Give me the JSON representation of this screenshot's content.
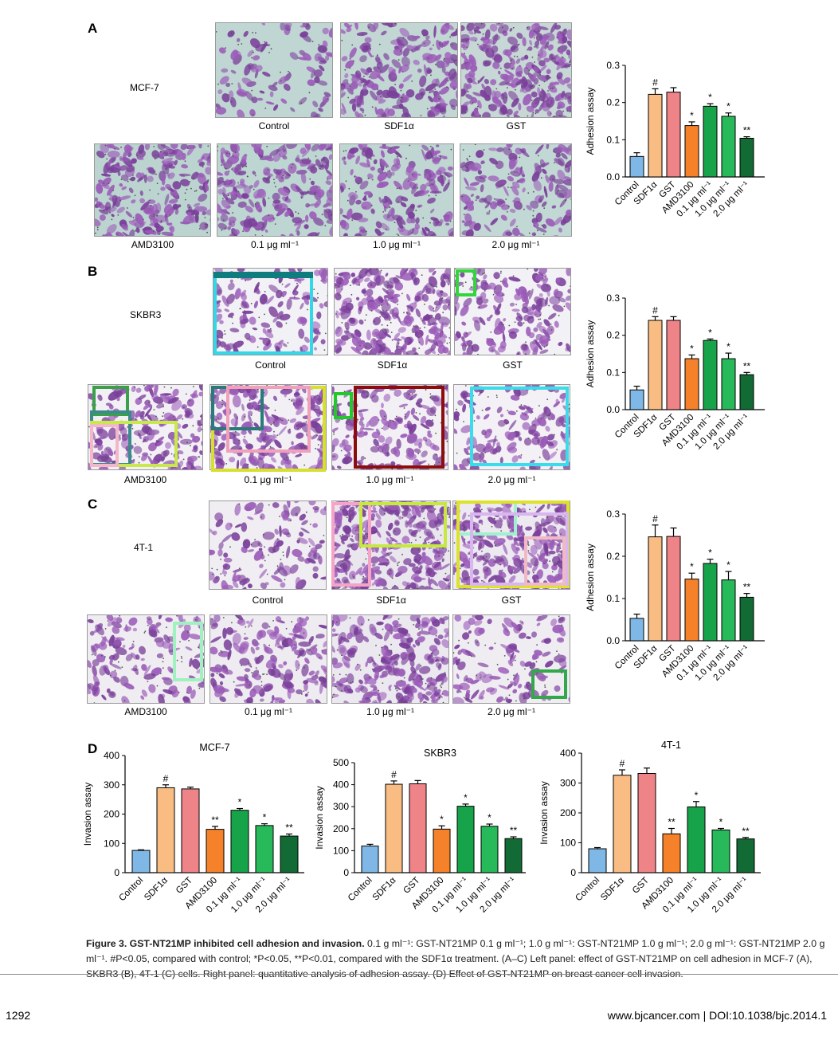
{
  "panels": {
    "A": {
      "letter": "A",
      "cell_line": "MCF-7"
    },
    "B": {
      "letter": "B",
      "cell_line": "SKBR3"
    },
    "C": {
      "letter": "C",
      "cell_line": "4T-1"
    },
    "D": {
      "letter": "D"
    }
  },
  "image_labels": {
    "control": "Control",
    "sdf": "SDF1α",
    "gst": "GST",
    "amd": "AMD3100",
    "d01": "0.1 μg ml⁻¹",
    "d10": "1.0 μg ml⁻¹",
    "d20": "2.0 μg ml⁻¹"
  },
  "colors": {
    "control": "#7fb8e6",
    "sdf": "#f9bd84",
    "gst": "#ef8488",
    "amd": "#f5822a",
    "d01": "#17a34a",
    "d10": "#27b95a",
    "d20": "#126b35",
    "stain_bg": "#c7d9d6",
    "stain_cell": "#7a3f9a"
  },
  "chart_data": [
    {
      "id": "A-adhesion",
      "type": "bar",
      "ylabel": "Adhesion assay",
      "ylim": [
        0,
        0.3
      ],
      "yticks": [
        "0.0",
        "0.1",
        "0.2",
        "0.3"
      ],
      "categories": [
        "Control",
        "SDF1α",
        "GST",
        "AMD3100",
        "0.1 μg ml⁻¹",
        "1.0 μg ml⁻¹",
        "2.0 μg ml⁻¹"
      ],
      "values": [
        0.055,
        0.222,
        0.228,
        0.138,
        0.19,
        0.163,
        0.104
      ],
      "errors": [
        0.01,
        0.015,
        0.012,
        0.01,
        0.007,
        0.009,
        0.004
      ],
      "annotations": [
        "",
        "#",
        "",
        "*",
        "*",
        "*",
        "**"
      ]
    },
    {
      "id": "B-adhesion",
      "type": "bar",
      "ylabel": "Adhesion assay",
      "ylim": [
        0,
        0.3
      ],
      "yticks": [
        "0.0",
        "0.1",
        "0.2",
        "0.3"
      ],
      "categories": [
        "Control",
        "SDF1α",
        "GST",
        "AMD3100",
        "0.1 μg ml⁻¹",
        "1.0 μg ml⁻¹",
        "2.0 μg ml⁻¹"
      ],
      "values": [
        0.053,
        0.24,
        0.24,
        0.137,
        0.186,
        0.137,
        0.094
      ],
      "errors": [
        0.01,
        0.01,
        0.01,
        0.01,
        0.004,
        0.015,
        0.006
      ],
      "annotations": [
        "",
        "#",
        "",
        "*",
        "*",
        "*",
        "**"
      ]
    },
    {
      "id": "C-adhesion",
      "type": "bar",
      "ylabel": "Adhesion assay",
      "ylim": [
        0,
        0.3
      ],
      "yticks": [
        "0.0",
        "0.1",
        "0.2",
        "0.3"
      ],
      "categories": [
        "Control",
        "SDF1α",
        "GST",
        "AMD3100",
        "0.1 μg ml⁻¹",
        "1.0 μg ml⁻¹",
        "2.0 μg ml⁻¹"
      ],
      "values": [
        0.053,
        0.246,
        0.247,
        0.146,
        0.183,
        0.144,
        0.103
      ],
      "errors": [
        0.01,
        0.028,
        0.02,
        0.014,
        0.01,
        0.02,
        0.009
      ],
      "annotations": [
        "",
        "#",
        "",
        "*",
        "*",
        "*",
        "**"
      ]
    },
    {
      "id": "D-MCF7",
      "type": "bar",
      "title": "MCF-7",
      "ylabel": "Invasion assay",
      "ylim": [
        0,
        400
      ],
      "yticks": [
        "0",
        "100",
        "200",
        "300",
        "400"
      ],
      "categories": [
        "Control",
        "SDF1α",
        "GST",
        "AMD3100",
        "0.1 μg ml⁻¹",
        "1.0 μg ml⁻¹",
        "2.0 μg ml⁻¹"
      ],
      "values": [
        76,
        290,
        286,
        148,
        213,
        161,
        125
      ],
      "errors": [
        2,
        10,
        6,
        10,
        6,
        6,
        7
      ],
      "annotations": [
        "",
        "#",
        "",
        "**",
        "*",
        "*",
        "**"
      ]
    },
    {
      "id": "D-SKBR3",
      "type": "bar",
      "title": "SKBR3",
      "ylabel": "Invasion assay",
      "ylim": [
        0,
        500
      ],
      "yticks": [
        "0",
        "100",
        "200",
        "300",
        "400",
        "500"
      ],
      "categories": [
        "Control",
        "SDF1α",
        "GST",
        "AMD3100",
        "0.1 μg ml⁻¹",
        "1.0 μg ml⁻¹",
        "2.0 μg ml⁻¹"
      ],
      "values": [
        121,
        402,
        404,
        198,
        302,
        211,
        155
      ],
      "errors": [
        8,
        15,
        15,
        15,
        10,
        10,
        8
      ],
      "annotations": [
        "",
        "#",
        "",
        "*",
        "*",
        "*",
        "**"
      ]
    },
    {
      "id": "D-4T1",
      "type": "bar",
      "title": "4T-1",
      "ylabel": "Invasion assay",
      "ylim": [
        0,
        400
      ],
      "yticks": [
        "0",
        "100",
        "200",
        "300",
        "400"
      ],
      "categories": [
        "Control",
        "SDF1α",
        "GST",
        "AMD3100",
        "0.1 μg ml⁻¹",
        "1.0 μg ml⁻¹",
        "2.0 μg ml⁻¹"
      ],
      "values": [
        80,
        326,
        332,
        130,
        220,
        143,
        113
      ],
      "errors": [
        4,
        18,
        18,
        18,
        18,
        5,
        5
      ],
      "annotations": [
        "",
        "#",
        "",
        "**",
        "*",
        "*",
        "**"
      ]
    }
  ],
  "caption": {
    "title": "Figure 3. GST-NT21MP inhibited cell adhesion and invasion.",
    "body": " 0.1 g ml⁻¹: GST-NT21MP 0.1 g ml⁻¹; 1.0 g ml⁻¹: GST-NT21MP 1.0 g ml⁻¹; 2.0 g ml⁻¹: GST-NT21MP 2.0 g ml⁻¹. #P<0.05, compared with control; *P<0.05, **P<0.01, compared with the SDF1α treatment. (A–C) Left panel: effect of GST-NT21MP on cell adhesion in MCF-7 (A), SKBR3 (B), 4T-1 (C) cells. Right panel: quantitative analysis of adhesion assay. (D) Effect of GST-NT21MP on breast cancer cell invasion."
  },
  "footer": {
    "page": "1292",
    "doi": "www.bjcancer.com | DOI:10.1038/bjc.2014.1"
  }
}
